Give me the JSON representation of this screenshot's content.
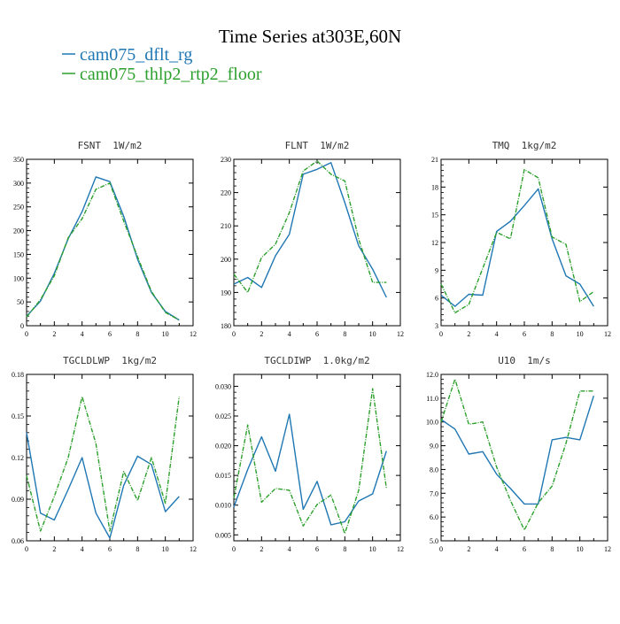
{
  "figure": {
    "title": "Time Series at303E,60N",
    "legend": [
      {
        "name": "cam075_dflt_rg",
        "color": "#1f77b4"
      },
      {
        "name": "cam075_thlp2_rtp2_floor",
        "color": "#2ca02c"
      }
    ]
  },
  "chart_data": [
    {
      "type": "line",
      "title": "FSNT  1W/m2",
      "x": [
        0,
        1,
        2,
        3,
        4,
        5,
        6,
        7,
        8,
        9,
        10,
        11
      ],
      "xlim": [
        0,
        12
      ],
      "xticks": [
        "0",
        "2",
        "4",
        "6",
        "8",
        "10",
        "12"
      ],
      "ylim": [
        0,
        350
      ],
      "yticks": [
        "0",
        "50",
        "100",
        "150",
        "200",
        "250",
        "300",
        "350"
      ],
      "series": [
        {
          "name": "cam075_dflt_rg",
          "color": "#1f77b4",
          "dashed": false,
          "values": [
            20,
            52,
            110,
            183,
            240,
            313,
            303,
            230,
            140,
            70,
            30,
            12
          ]
        },
        {
          "name": "cam075_thlp2_rtp2_floor",
          "color": "#2ca02c",
          "dashed": true,
          "values": [
            18,
            55,
            105,
            185,
            225,
            287,
            300,
            220,
            145,
            72,
            28,
            12
          ]
        }
      ]
    },
    {
      "type": "line",
      "title": "FLNT  1W/m2",
      "x": [
        0,
        1,
        2,
        3,
        4,
        5,
        6,
        7,
        8,
        9,
        10,
        11
      ],
      "xlim": [
        0,
        12
      ],
      "xticks": [
        "0",
        "2",
        "4",
        "6",
        "8",
        "10",
        "12"
      ],
      "ylim": [
        180,
        230
      ],
      "yticks": [
        "180",
        "190",
        "200",
        "210",
        "220",
        "230"
      ],
      "series": [
        {
          "name": "cam075_dflt_rg",
          "color": "#1f77b4",
          "dashed": false,
          "values": [
            192.5,
            194.5,
            191.5,
            201,
            207.5,
            225.5,
            227,
            229,
            217,
            204,
            197,
            188.5
          ]
        },
        {
          "name": "cam075_thlp2_rtp2_floor",
          "color": "#2ca02c",
          "dashed": true,
          "values": [
            195.5,
            190,
            200.5,
            204.5,
            214,
            226.5,
            229.5,
            225.5,
            223.5,
            206,
            193,
            193
          ]
        }
      ]
    },
    {
      "type": "line",
      "title": "TMQ  1kg/m2",
      "x": [
        0,
        1,
        2,
        3,
        4,
        5,
        6,
        7,
        8,
        9,
        10,
        11
      ],
      "xlim": [
        0,
        12
      ],
      "xticks": [
        "0",
        "2",
        "4",
        "6",
        "8",
        "10",
        "12"
      ],
      "ylim": [
        3,
        21
      ],
      "yticks": [
        "3",
        "6",
        "9",
        "12",
        "15",
        "18",
        "21"
      ],
      "series": [
        {
          "name": "cam075_dflt_rg",
          "color": "#1f77b4",
          "dashed": false,
          "values": [
            6.3,
            5.1,
            6.4,
            6.3,
            13.2,
            14.3,
            16,
            17.8,
            12.4,
            8.4,
            7.5,
            5.1
          ]
        },
        {
          "name": "cam075_thlp2_rtp2_floor",
          "color": "#2ca02c",
          "dashed": true,
          "values": [
            7.5,
            4.4,
            5.3,
            9.2,
            13.1,
            12.4,
            19.9,
            19,
            12.6,
            11.8,
            5.6,
            6.7
          ]
        }
      ]
    },
    {
      "type": "line",
      "title": "TGCLDLWP  1kg/m2",
      "x": [
        0,
        1,
        2,
        3,
        4,
        5,
        6,
        7,
        8,
        9,
        10,
        11
      ],
      "xlim": [
        0,
        12
      ],
      "xticks": [
        "0",
        "2",
        "4",
        "6",
        "8",
        "10",
        "12"
      ],
      "ylim": [
        0.06,
        0.18
      ],
      "yticks": [
        "0.06",
        "0.09",
        "0.12",
        "0.15",
        "0.18"
      ],
      "series": [
        {
          "name": "cam075_dflt_rg",
          "color": "#1f77b4",
          "dashed": false,
          "values": [
            0.138,
            0.08,
            0.075,
            0.097,
            0.12,
            0.08,
            0.062,
            0.1,
            0.121,
            0.115,
            0.081,
            0.092
          ]
        },
        {
          "name": "cam075_thlp2_rtp2_floor",
          "color": "#2ca02c",
          "dashed": true,
          "values": [
            0.107,
            0.067,
            0.092,
            0.12,
            0.164,
            0.13,
            0.067,
            0.11,
            0.089,
            0.12,
            0.087,
            0.164
          ]
        }
      ]
    },
    {
      "type": "line",
      "title": "TGCLDIWP  1.0kg/m2",
      "x": [
        0,
        1,
        2,
        3,
        4,
        5,
        6,
        7,
        8,
        9,
        10,
        11
      ],
      "xlim": [
        0,
        12
      ],
      "xticks": [
        "0",
        "2",
        "4",
        "6",
        "8",
        "10",
        "12"
      ],
      "ylim": [
        0.004,
        0.032
      ],
      "yticks": [
        "0.005",
        "0.010",
        "0.015",
        "0.020",
        "0.025",
        "0.030"
      ],
      "series": [
        {
          "name": "cam075_dflt_rg",
          "color": "#1f77b4",
          "dashed": false,
          "values": [
            0.0097,
            0.016,
            0.0215,
            0.0157,
            0.0253,
            0.0093,
            0.014,
            0.0067,
            0.0072,
            0.0107,
            0.0119,
            0.0191
          ]
        },
        {
          "name": "cam075_thlp2_rtp2_floor",
          "color": "#2ca02c",
          "dashed": true,
          "values": [
            0.0112,
            0.0235,
            0.0105,
            0.0128,
            0.0125,
            0.0065,
            0.0101,
            0.0117,
            0.0052,
            0.0125,
            0.0296,
            0.0128
          ]
        }
      ]
    },
    {
      "type": "line",
      "title": "U10  1m/s",
      "x": [
        0,
        1,
        2,
        3,
        4,
        5,
        6,
        7,
        8,
        9,
        10,
        11
      ],
      "xlim": [
        0,
        12
      ],
      "xticks": [
        "0",
        "2",
        "4",
        "6",
        "8",
        "10",
        "12"
      ],
      "ylim": [
        5,
        12
      ],
      "yticks": [
        "5.0",
        "6.0",
        "7.0",
        "8.0",
        "9.0",
        "10.0",
        "11.0",
        "12.0"
      ],
      "series": [
        {
          "name": "cam075_dflt_rg",
          "color": "#1f77b4",
          "dashed": false,
          "values": [
            10.1,
            9.7,
            8.65,
            8.75,
            7.8,
            7.2,
            6.55,
            6.55,
            9.25,
            9.35,
            9.25,
            11.1
          ]
        },
        {
          "name": "cam075_thlp2_rtp2_floor",
          "color": "#2ca02c",
          "dashed": true,
          "values": [
            10.0,
            11.8,
            9.9,
            10.0,
            8.1,
            6.7,
            5.45,
            6.6,
            7.3,
            9.1,
            11.3,
            11.3
          ]
        }
      ]
    }
  ]
}
